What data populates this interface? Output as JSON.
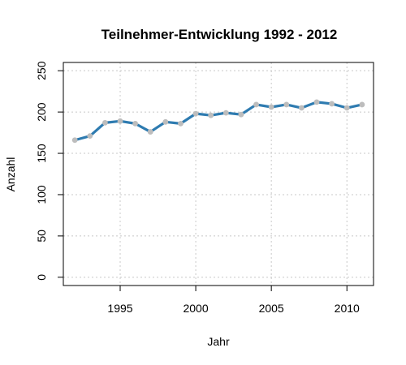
{
  "chart_data": {
    "type": "line",
    "title": "Teilnehmer-Entwicklung 1992 - 2012",
    "xlabel": "Jahr",
    "ylabel": "Anzahl",
    "x": [
      1992,
      1993,
      1994,
      1995,
      1996,
      1997,
      1998,
      1999,
      2000,
      2001,
      2002,
      2003,
      2004,
      2005,
      2006,
      2007,
      2008,
      2009,
      2010,
      2011
    ],
    "series": [
      {
        "values": [
          166,
          171,
          187,
          189,
          186,
          176,
          188,
          186,
          198,
          196,
          199,
          197,
          209,
          206,
          209,
          205,
          212,
          210,
          205,
          209
        ]
      }
    ],
    "xlim": [
      1991.24,
      2011.76
    ],
    "ylim": [
      -10,
      260
    ],
    "xticks": [
      1995,
      2000,
      2005,
      2010
    ],
    "yticks": [
      0,
      50,
      100,
      150,
      200,
      250
    ],
    "grid": true,
    "line_color": "#2e7bb0",
    "marker_color": "#bdbdbd",
    "legend": "none"
  }
}
